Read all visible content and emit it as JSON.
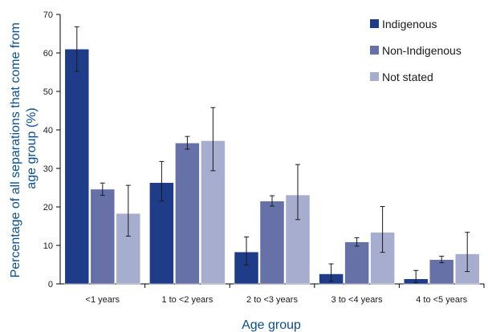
{
  "chart_data": {
    "type": "bar",
    "title": "",
    "xlabel": "Age group",
    "ylabel_lines": [
      "Percentage of all separations that come from",
      "age group (%)"
    ],
    "ylim": [
      0,
      70
    ],
    "yticks": [
      0,
      10,
      20,
      30,
      40,
      50,
      60,
      70
    ],
    "categories": [
      "<1 years",
      "1 to <2 years",
      "2 to <3 years",
      "3 to <4 years",
      "4 to <5 years"
    ],
    "series": [
      {
        "name": "Indigenous",
        "color": "#1f3c88",
        "values": [
          61,
          26.3,
          8.3,
          2.6,
          1.3
        ],
        "err_low": [
          55.2,
          21.5,
          4.9,
          0.7,
          0.3
        ],
        "err_high": [
          66.8,
          31.8,
          12.2,
          5.2,
          3.5
        ]
      },
      {
        "name": "Non-Indigenous",
        "color": "#6671a8",
        "values": [
          24.6,
          36.6,
          21.5,
          10.9,
          6.3
        ],
        "err_low": [
          23.0,
          35.0,
          20.2,
          9.8,
          5.5
        ],
        "err_high": [
          26.2,
          38.3,
          22.9,
          12.0,
          7.2
        ]
      },
      {
        "name": "Not stated",
        "color": "#a6adce",
        "values": [
          18.3,
          37.2,
          23.1,
          13.4,
          7.8
        ],
        "err_low": [
          12.4,
          29.4,
          16.7,
          8.2,
          3.2
        ],
        "err_high": [
          25.6,
          45.8,
          31.0,
          20.1,
          13.4
        ]
      }
    ],
    "legend_position": "top-right",
    "grid": false
  }
}
